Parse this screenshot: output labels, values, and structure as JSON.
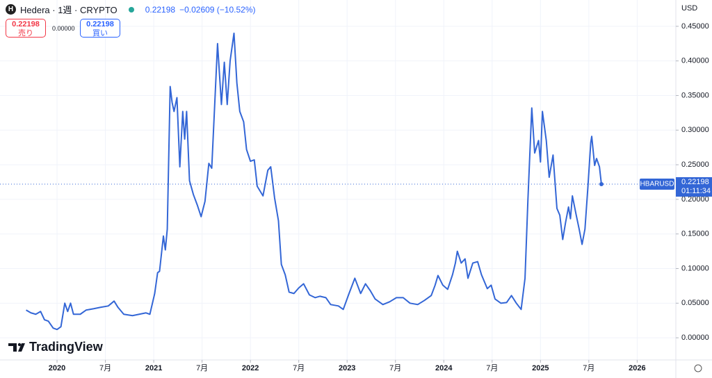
{
  "chart_data": {
    "type": "line",
    "title": "Hedera · 1週 · CRYPTO",
    "change": "−0.02609 (−10.52%)",
    "sell_label": "売り",
    "buy_label": "買い",
    "spread": "0.00000",
    "currency": "USD",
    "countdown": "01:11:34",
    "logo": "TradingView",
    "x": [
      2019.68,
      2019.73,
      2019.78,
      2019.83,
      2019.87,
      2019.91,
      2019.96,
      2020.0,
      2020.04,
      2020.08,
      2020.11,
      2020.14,
      2020.17,
      2020.24,
      2020.3,
      2020.38,
      2020.45,
      2020.53,
      2020.59,
      2020.63,
      2020.69,
      2020.78,
      2020.85,
      2020.92,
      2020.96,
      2021.01,
      2021.04,
      2021.06,
      2021.1,
      2021.12,
      2021.14,
      2021.17,
      2021.19,
      2021.21,
      2021.24,
      2021.27,
      2021.3,
      2021.32,
      2021.34,
      2021.37,
      2021.41,
      2021.45,
      2021.49,
      2021.53,
      2021.57,
      2021.6,
      2021.66,
      2021.7,
      2021.73,
      2021.76,
      2021.79,
      2021.83,
      2021.86,
      2021.89,
      2021.93,
      2021.96,
      2022.0,
      2022.04,
      2022.07,
      2022.13,
      2022.18,
      2022.21,
      2022.25,
      2022.29,
      2022.32,
      2022.36,
      2022.4,
      2022.45,
      2022.5,
      2022.55,
      2022.61,
      2022.67,
      2022.72,
      2022.78,
      2022.83,
      2022.91,
      2022.96,
      2023.02,
      2023.08,
      2023.14,
      2023.19,
      2023.24,
      2023.29,
      2023.37,
      2023.44,
      2023.51,
      2023.58,
      2023.65,
      2023.73,
      2023.8,
      2023.87,
      2023.91,
      2023.94,
      2023.99,
      2024.04,
      2024.09,
      2024.12,
      2024.14,
      2024.18,
      2024.22,
      2024.25,
      2024.3,
      2024.35,
      2024.39,
      2024.45,
      2024.49,
      2024.53,
      2024.59,
      2024.65,
      2024.7,
      2024.75,
      2024.8,
      2024.84,
      2024.87,
      2024.91,
      2024.94,
      2024.98,
      2025.0,
      2025.02,
      2025.06,
      2025.09,
      2025.13,
      2025.17,
      2025.2,
      2025.23,
      2025.26,
      2025.29,
      2025.31,
      2025.33,
      2025.37,
      2025.4,
      2025.43,
      2025.46,
      2025.49,
      2025.52,
      2025.53,
      2025.56,
      2025.58,
      2025.61,
      2025.63
    ],
    "series": [
      {
        "name": "HBARUSD",
        "color": "#3366d6",
        "values": [
          0.04,
          0.036,
          0.034,
          0.038,
          0.026,
          0.024,
          0.014,
          0.012,
          0.016,
          0.05,
          0.038,
          0.05,
          0.034,
          0.034,
          0.04,
          0.042,
          0.044,
          0.046,
          0.053,
          0.044,
          0.034,
          0.032,
          0.034,
          0.036,
          0.034,
          0.064,
          0.094,
          0.096,
          0.147,
          0.127,
          0.157,
          0.363,
          0.34,
          0.327,
          0.347,
          0.247,
          0.327,
          0.287,
          0.327,
          0.227,
          0.207,
          0.192,
          0.175,
          0.197,
          0.252,
          0.245,
          0.425,
          0.337,
          0.398,
          0.337,
          0.4,
          0.44,
          0.368,
          0.327,
          0.312,
          0.272,
          0.255,
          0.257,
          0.219,
          0.205,
          0.242,
          0.247,
          0.202,
          0.169,
          0.106,
          0.091,
          0.066,
          0.064,
          0.072,
          0.078,
          0.062,
          0.058,
          0.06,
          0.058,
          0.048,
          0.046,
          0.041,
          0.064,
          0.086,
          0.064,
          0.078,
          0.068,
          0.056,
          0.048,
          0.052,
          0.058,
          0.058,
          0.05,
          0.048,
          0.054,
          0.061,
          0.076,
          0.09,
          0.076,
          0.07,
          0.091,
          0.108,
          0.125,
          0.108,
          0.114,
          0.086,
          0.108,
          0.11,
          0.091,
          0.071,
          0.076,
          0.056,
          0.05,
          0.051,
          0.061,
          0.05,
          0.041,
          0.086,
          0.199,
          0.332,
          0.267,
          0.285,
          0.254,
          0.327,
          0.285,
          0.232,
          0.264,
          0.187,
          0.177,
          0.142,
          0.167,
          0.189,
          0.172,
          0.205,
          0.177,
          0.157,
          0.135,
          0.157,
          0.217,
          0.282,
          0.291,
          0.249,
          0.259,
          0.247,
          0.22198
        ]
      }
    ],
    "xlim": [
      2019.41,
      2026.4
    ],
    "xticks": [
      2020,
      {
        "value": 2020.5,
        "label": "7月"
      },
      2021,
      {
        "value": 2021.5,
        "label": "7月"
      },
      2022,
      {
        "value": 2022.5,
        "label": "7月"
      },
      2023,
      {
        "value": 2023.5,
        "label": "7月"
      },
      2024,
      {
        "value": 2024.5,
        "label": "7月"
      },
      2025,
      {
        "value": 2025.5,
        "label": "7月"
      },
      2026
    ],
    "ylim": [
      -0.032,
      0.488
    ],
    "yticks": [
      {
        "value": 0,
        "label": "0.00000"
      },
      {
        "value": 0.05,
        "label": "0.05000"
      },
      {
        "value": 0.1,
        "label": "0.10000"
      },
      {
        "value": 0.15,
        "label": "0.15000"
      },
      {
        "value": 0.2,
        "label": "0.20000"
      },
      {
        "value": 0.25,
        "label": "0.25000"
      },
      {
        "value": 0.3,
        "label": "0.30000"
      },
      {
        "value": 0.35,
        "label": "0.35000"
      },
      {
        "value": 0.4,
        "label": "0.40000"
      },
      {
        "value": 0.45,
        "label": "0.45000"
      }
    ],
    "grid": true
  }
}
